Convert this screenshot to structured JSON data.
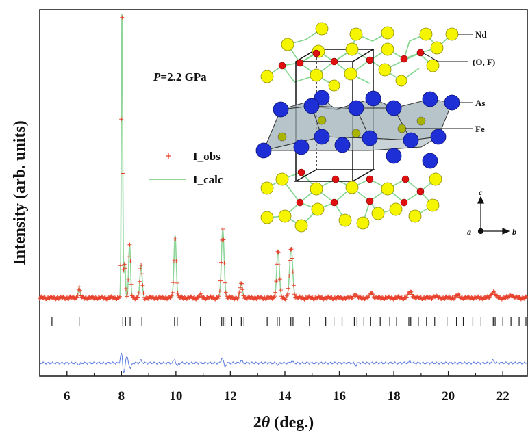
{
  "chart_data": {
    "type": "scatter",
    "title": "",
    "xlabel": "2θ (deg.)",
    "xlabel_parts": {
      "prefix": "2",
      "symbol": "θ",
      "suffix": " (deg.)"
    },
    "ylabel": "Intensity (arb. units)",
    "xlim": [
      5,
      22.9
    ],
    "xticks": [
      6,
      8,
      10,
      12,
      14,
      16,
      18,
      20,
      22
    ],
    "ylim": [
      -0.22,
      1.02
    ],
    "pressure_annotation": {
      "symbol": "P",
      "rest": "=2.2 GPa"
    },
    "legend_position": "center-left",
    "baseline": 0.045,
    "peaks": [
      {
        "x": 6.45,
        "h": 0.035,
        "w": 0.05
      },
      {
        "x": 8.02,
        "h": 0.96,
        "w": 0.035
      },
      {
        "x": 8.12,
        "h": 0.12,
        "w": 0.04
      },
      {
        "x": 8.3,
        "h": 0.18,
        "w": 0.05
      },
      {
        "x": 8.72,
        "h": 0.11,
        "w": 0.06
      },
      {
        "x": 9.97,
        "h": 0.21,
        "w": 0.06
      },
      {
        "x": 10.9,
        "h": 0.01,
        "w": 0.06
      },
      {
        "x": 11.72,
        "h": 0.23,
        "w": 0.07
      },
      {
        "x": 12.4,
        "h": 0.05,
        "w": 0.06
      },
      {
        "x": 13.75,
        "h": 0.16,
        "w": 0.07
      },
      {
        "x": 14.23,
        "h": 0.17,
        "w": 0.08
      },
      {
        "x": 16.58,
        "h": 0.012,
        "w": 0.08
      },
      {
        "x": 17.18,
        "h": 0.018,
        "w": 0.08
      },
      {
        "x": 18.6,
        "h": 0.02,
        "w": 0.1
      },
      {
        "x": 19.5,
        "h": 0.006,
        "w": 0.08
      },
      {
        "x": 20.35,
        "h": 0.008,
        "w": 0.09
      },
      {
        "x": 21.65,
        "h": 0.022,
        "w": 0.09
      },
      {
        "x": 22.3,
        "h": 0.01,
        "w": 0.09
      }
    ],
    "reflection_positions": [
      5.45,
      6.45,
      8.05,
      8.15,
      8.32,
      8.75,
      9.95,
      10.05,
      10.9,
      11.68,
      11.74,
      11.8,
      12.05,
      12.4,
      12.5,
      13.35,
      13.72,
      13.8,
      14.22,
      14.3,
      14.9,
      15.5,
      15.8,
      16.1,
      16.55,
      16.65,
      16.9,
      17.15,
      17.5,
      17.85,
      18.1,
      18.55,
      18.62,
      18.9,
      19.2,
      19.5,
      19.95,
      20.3,
      20.55,
      20.9,
      21.2,
      21.65,
      21.72,
      22.0,
      22.3,
      22.6,
      22.85
    ],
    "difference_curve": {
      "offset": -0.175,
      "features": [
        {
          "x": 6.45,
          "a": -0.006
        },
        {
          "x": 8.0,
          "a": 0.035
        },
        {
          "x": 8.08,
          "a": -0.035
        },
        {
          "x": 8.2,
          "a": 0.02
        },
        {
          "x": 8.33,
          "a": -0.018
        },
        {
          "x": 8.72,
          "a": 0.008
        },
        {
          "x": 9.95,
          "a": 0.012
        },
        {
          "x": 10.05,
          "a": -0.01
        },
        {
          "x": 11.7,
          "a": 0.018
        },
        {
          "x": 11.8,
          "a": -0.012
        },
        {
          "x": 12.4,
          "a": 0.008
        },
        {
          "x": 13.75,
          "a": -0.006
        },
        {
          "x": 14.25,
          "a": 0.006
        },
        {
          "x": 16.6,
          "a": -0.008
        },
        {
          "x": 18.6,
          "a": 0.006
        },
        {
          "x": 21.65,
          "a": 0.01
        }
      ]
    },
    "series": [
      {
        "name": "I_obs",
        "marker": "+",
        "color": "#e8412c"
      },
      {
        "name": "I_calc",
        "style": "line",
        "color": "#8fd69a"
      },
      {
        "role": "bragg positions",
        "marker": "|",
        "color": "#222222"
      },
      {
        "role": "difference",
        "style": "line",
        "color": "#5b7be0"
      }
    ]
  },
  "structure_inset": {
    "labels": {
      "nd": "Nd",
      "of": "(O, F)",
      "as": "As",
      "fe": "Fe"
    },
    "axes": {
      "c": "c",
      "a": "a",
      "b": "b"
    },
    "colors": {
      "nd": "#f5f500",
      "of": "#e01010",
      "as": "#1f2fd6",
      "fe": "#a8b400",
      "bond": "#7fd68a",
      "polyhedron": "#9fb0b8"
    }
  }
}
